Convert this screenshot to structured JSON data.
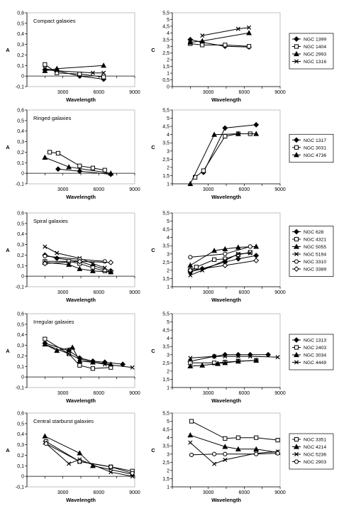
{
  "chart_data": [
    {
      "type": "line",
      "title": "Compact galaxies",
      "xlabel": "Wavelength",
      "ylabel": "A",
      "xlim": [
        0,
        9000
      ],
      "ylim": [
        -0.1,
        0.6
      ],
      "x_ticks": [
        "0",
        "1500",
        "3000",
        "4500",
        "6000",
        "7500",
        "9000"
      ],
      "y_ticks": [
        "-0,1",
        "0",
        "0,1",
        "0,2",
        "0,3",
        "0,4",
        "0,5",
        "0,6"
      ],
      "series": [
        {
          "name": "NGC 1399",
          "marker": "diamond",
          "x": [
            1500,
            2500,
            4400,
            6400
          ],
          "y": [
            0.06,
            0.05,
            0.0,
            -0.03
          ]
        },
        {
          "name": "NGC 1404",
          "marker": "square",
          "x": [
            1500,
            2500,
            4400,
            6400
          ],
          "y": [
            0.11,
            0.03,
            0.02,
            -0.01
          ]
        },
        {
          "name": "NGC 2993",
          "marker": "triangle",
          "x": [
            1500,
            2500,
            6400
          ],
          "y": [
            0.05,
            0.07,
            0.1
          ]
        },
        {
          "name": "NGC 1316",
          "marker": "cross",
          "x": [
            1500,
            2500,
            5500,
            6400
          ],
          "y": [
            0.07,
            0.05,
            0.03,
            0.03
          ]
        }
      ]
    },
    {
      "type": "line",
      "title": "",
      "xlabel": "Wavelength",
      "ylabel": "C",
      "xlim": [
        0,
        9000
      ],
      "ylim": [
        0,
        5.5
      ],
      "x_ticks": [
        "0",
        "1500",
        "3000",
        "4500",
        "6000",
        "7500",
        "9000"
      ],
      "y_ticks": [
        "0",
        "0,5",
        "1",
        "1,5",
        "2",
        "2,5",
        "3",
        "3,5",
        "4",
        "4,5",
        "5",
        "5,5"
      ],
      "legend": [
        "NGC 1399",
        "NGC 1404",
        "NGC 2993",
        "NGC 1316"
      ],
      "series": [
        {
          "name": "NGC 1399",
          "marker": "diamond",
          "x": [
            1500,
            2500,
            4400,
            6400
          ],
          "y": [
            3.5,
            3.3,
            3.0,
            2.95
          ]
        },
        {
          "name": "NGC 1404",
          "marker": "square",
          "x": [
            1500,
            2500,
            4400,
            6400
          ],
          "y": [
            3.2,
            3.1,
            3.1,
            3.0
          ]
        },
        {
          "name": "NGC 2993",
          "marker": "triangle",
          "x": [
            1500,
            2500,
            6400
          ],
          "y": [
            3.3,
            3.4,
            4.0
          ]
        },
        {
          "name": "NGC 1316",
          "marker": "cross",
          "x": [
            2500,
            5500,
            6400
          ],
          "y": [
            3.8,
            4.3,
            4.4
          ]
        }
      ]
    },
    {
      "type": "line",
      "title": "Ringed galaxies",
      "xlabel": "Wavelength",
      "ylabel": "A",
      "xlim": [
        0,
        9000
      ],
      "ylim": [
        -0.1,
        0.6
      ],
      "x_ticks": [
        "0",
        "1500",
        "3000",
        "4500",
        "6000",
        "7500",
        "9000"
      ],
      "y_ticks": [
        "-0,1",
        "0",
        "0,1",
        "0,2",
        "0,3",
        "0,4",
        "0,5",
        "0,6"
      ],
      "series": [
        {
          "name": "NGC 1317",
          "marker": "diamond",
          "x": [
            2600,
            4400,
            7000
          ],
          "y": [
            0.04,
            0.02,
            -0.01
          ]
        },
        {
          "name": "NGC 3031",
          "marker": "square",
          "x": [
            1900,
            2600,
            4400,
            5500,
            6500
          ],
          "y": [
            0.2,
            0.19,
            0.07,
            0.05,
            0.03
          ]
        },
        {
          "name": "NGC 4736",
          "marker": "triangle",
          "x": [
            1500,
            3500,
            7000
          ],
          "y": [
            0.15,
            0.06,
            0.0
          ]
        }
      ]
    },
    {
      "type": "line",
      "title": "",
      "xlabel": "Wavelength",
      "ylabel": "C",
      "xlim": [
        0,
        9000
      ],
      "ylim": [
        1,
        5.5
      ],
      "x_ticks": [
        "0",
        "1500",
        "3000",
        "4500",
        "6000",
        "7500",
        "9000"
      ],
      "y_ticks": [
        "1",
        "1,5",
        "2",
        "2,5",
        "3",
        "3,5",
        "4",
        "4,5",
        "5",
        "5,5"
      ],
      "legend": [
        "NGC 1317",
        "NGC 3031",
        "NGC 4736"
      ],
      "series": [
        {
          "name": "NGC 1317",
          "marker": "diamond",
          "x": [
            2600,
            4400,
            7000
          ],
          "y": [
            1.7,
            4.4,
            4.6
          ]
        },
        {
          "name": "NGC 3031",
          "marker": "square",
          "x": [
            1900,
            2600,
            4400,
            5500,
            6500
          ],
          "y": [
            1.4,
            1.8,
            3.9,
            4.05,
            4.05
          ]
        },
        {
          "name": "NGC 4736",
          "marker": "triangle",
          "x": [
            1500,
            3500,
            5500,
            7000
          ],
          "y": [
            1.0,
            4.0,
            4.05,
            4.05
          ]
        }
      ]
    },
    {
      "type": "line",
      "title": "Spiral galaxies",
      "xlabel": "Wavelength",
      "ylabel": "A",
      "xlim": [
        0,
        9000
      ],
      "ylim": [
        -0.1,
        0.6
      ],
      "x_ticks": [
        "0",
        "1500",
        "3000",
        "4500",
        "6000",
        "7500",
        "9000"
      ],
      "y_ticks": [
        "-0,1",
        "0",
        "0,1",
        "0,2",
        "0,3",
        "0,4",
        "0,5",
        "0,6"
      ],
      "series": [
        {
          "name": "NGC 628",
          "marker": "diamond",
          "x": [
            1500,
            2500,
            4400,
            5500,
            7000
          ],
          "y": [
            0.2,
            0.17,
            0.14,
            0.1,
            0.05
          ]
        },
        {
          "name": "NGC 4321",
          "marker": "square",
          "x": [
            1500,
            3500,
            4400,
            5500,
            6500,
            7000
          ],
          "y": [
            0.14,
            0.14,
            0.12,
            0.08,
            0.05,
            0.04
          ]
        },
        {
          "name": "NGC 5055",
          "marker": "triangle",
          "x": [
            1500,
            3500,
            4400,
            5500,
            7000
          ],
          "y": [
            0.13,
            0.11,
            0.07,
            0.05,
            0.04
          ]
        },
        {
          "name": "NGC 5194",
          "marker": "cross",
          "x": [
            1500,
            2500,
            4400,
            5500,
            6500
          ],
          "y": [
            0.28,
            0.22,
            0.17,
            0.12,
            0.08
          ]
        },
        {
          "name": "NGC 3310",
          "marker": "circle",
          "x": [
            1500,
            4400,
            6500
          ],
          "y": [
            0.19,
            0.16,
            0.14
          ]
        },
        {
          "name": "NGC 3389",
          "marker": "diamond-open",
          "x": [
            1500,
            4400,
            7000
          ],
          "y": [
            0.12,
            0.14,
            0.13
          ]
        }
      ]
    },
    {
      "type": "line",
      "title": "",
      "xlabel": "Wavelength",
      "ylabel": "C",
      "xlim": [
        0,
        9000
      ],
      "ylim": [
        1,
        5.5
      ],
      "x_ticks": [
        "0",
        "1500",
        "3000",
        "4500",
        "6000",
        "7500",
        "9000"
      ],
      "y_ticks": [
        "1",
        "1,5",
        "2",
        "2,5",
        "3",
        "3,5",
        "4",
        "4,5",
        "5",
        "5,5"
      ],
      "legend": [
        "NGC 628",
        "NGC 4321",
        "NGC 5055",
        "NGC 5194",
        "NGC 3310",
        "NGC 3389"
      ],
      "series": [
        {
          "name": "NGC 628",
          "marker": "diamond",
          "x": [
            1500,
            2500,
            4400,
            5500,
            7000
          ],
          "y": [
            1.9,
            2.1,
            2.5,
            2.7,
            2.9
          ]
        },
        {
          "name": "NGC 4321",
          "marker": "square",
          "x": [
            1500,
            2000,
            3500,
            4400,
            5500,
            6500
          ],
          "y": [
            2.0,
            2.2,
            2.65,
            2.7,
            2.95,
            3.1
          ]
        },
        {
          "name": "NGC 5055",
          "marker": "triangle",
          "x": [
            1500,
            3500,
            4400,
            5500,
            7000
          ],
          "y": [
            2.3,
            3.2,
            3.3,
            3.4,
            3.45
          ]
        },
        {
          "name": "NGC 5194",
          "marker": "cross",
          "x": [
            1500,
            2500,
            4400,
            5500,
            6500
          ],
          "y": [
            1.7,
            2.0,
            2.6,
            3.0,
            3.05
          ]
        },
        {
          "name": "NGC 3310",
          "marker": "circle",
          "x": [
            1500,
            4400,
            6500
          ],
          "y": [
            2.8,
            3.0,
            3.45
          ]
        },
        {
          "name": "NGC 3389",
          "marker": "diamond-open",
          "x": [
            1500,
            4400,
            7000
          ],
          "y": [
            2.0,
            2.3,
            2.6
          ]
        }
      ]
    },
    {
      "type": "line",
      "title": "Irregular galaxies",
      "xlabel": "Wavelength",
      "ylabel": "A",
      "xlim": [
        0,
        9000
      ],
      "ylim": [
        -0.1,
        0.6
      ],
      "x_ticks": [
        "0",
        "1500",
        "3000",
        "4500",
        "6000",
        "7500",
        "9000"
      ],
      "y_ticks": [
        "-0,1",
        "0",
        "0,1",
        "0,2",
        "0,3",
        "0,4",
        "0,5",
        "0,6"
      ],
      "series": [
        {
          "name": "NGC 1313",
          "marker": "diamond",
          "x": [
            1500,
            3500,
            4400,
            5500,
            6500,
            8000
          ],
          "y": [
            0.32,
            0.25,
            0.18,
            0.15,
            0.14,
            0.12
          ]
        },
        {
          "name": "NGC 2403",
          "marker": "square",
          "x": [
            1500,
            3500,
            4400,
            5500,
            7000
          ],
          "y": [
            0.36,
            0.22,
            0.11,
            0.08,
            0.09
          ]
        },
        {
          "name": "NGC 3034",
          "marker": "triangle",
          "x": [
            1500,
            2500,
            3800,
            4400,
            5500,
            7000
          ],
          "y": [
            0.31,
            0.25,
            0.28,
            0.15,
            0.14,
            0.12
          ]
        },
        {
          "name": "NGC 4449",
          "marker": "cross",
          "x": [
            1500,
            3500,
            4400,
            5500,
            6500,
            8800
          ],
          "y": [
            0.31,
            0.22,
            0.17,
            0.14,
            0.12,
            0.09
          ]
        }
      ]
    },
    {
      "type": "line",
      "title": "",
      "xlabel": "Wavelength",
      "ylabel": "C",
      "xlim": [
        0,
        9000
      ],
      "ylim": [
        1,
        5.5
      ],
      "x_ticks": [
        "0",
        "1500",
        "3000",
        "4500",
        "6000",
        "7500",
        "9000"
      ],
      "y_ticks": [
        "1",
        "1,5",
        "2",
        "2,5",
        "3",
        "3,5",
        "4",
        "4,5",
        "5",
        "5,5"
      ],
      "legend": [
        "NGC 1313",
        "NGC 2403",
        "NGC 3034",
        "NGC 4449"
      ],
      "series": [
        {
          "name": "NGC 1313",
          "marker": "diamond",
          "x": [
            1500,
            3500,
            4400,
            5500,
            6500,
            8000
          ],
          "y": [
            2.6,
            2.9,
            3.0,
            3.0,
            3.0,
            3.0
          ]
        },
        {
          "name": "NGC 2403",
          "marker": "square",
          "x": [
            1500,
            3500,
            4400,
            5500,
            7000
          ],
          "y": [
            2.5,
            2.5,
            2.55,
            2.6,
            2.65
          ]
        },
        {
          "name": "NGC 3034",
          "marker": "triangle",
          "x": [
            1500,
            2500,
            3800,
            4400,
            5500,
            7000
          ],
          "y": [
            2.3,
            2.35,
            2.45,
            2.5,
            2.6,
            2.65
          ]
        },
        {
          "name": "NGC 4449",
          "marker": "cross",
          "x": [
            1500,
            3500,
            4400,
            5500,
            6500,
            8800
          ],
          "y": [
            2.8,
            2.9,
            2.9,
            2.9,
            2.9,
            2.85
          ]
        }
      ]
    },
    {
      "type": "line",
      "title": "Central starburst galaxies",
      "xlabel": "Wavelength",
      "ylabel": "A",
      "xlim": [
        0,
        9000
      ],
      "ylim": [
        -0.1,
        0.6
      ],
      "x_ticks": [
        "0",
        "1500",
        "3000",
        "4500",
        "6000",
        "7500",
        "9000"
      ],
      "y_ticks": [
        "-0,1",
        "0",
        "0,1",
        "0,2",
        "0,3",
        "0,4",
        "0,5",
        "0,6"
      ],
      "series": [
        {
          "name": "NGC 3351",
          "marker": "square",
          "x": [
            1600,
            4400,
            7000,
            8800
          ],
          "y": [
            0.33,
            0.14,
            0.09,
            0.05
          ]
        },
        {
          "name": "NGC 4214",
          "marker": "triangle",
          "x": [
            1500,
            4400,
            5500,
            8800
          ],
          "y": [
            0.38,
            0.22,
            0.1,
            0.02
          ]
        },
        {
          "name": "NGC 5236",
          "marker": "cross",
          "x": [
            1500,
            3500,
            4400,
            7000,
            8800
          ],
          "y": [
            0.32,
            0.12,
            0.16,
            0.04,
            0.0
          ]
        },
        {
          "name": "NGC 2903",
          "marker": "circle",
          "x": [
            1600,
            4400,
            7000,
            8800
          ],
          "y": [
            0.31,
            0.14,
            0.09,
            0.03
          ]
        }
      ]
    },
    {
      "type": "line",
      "title": "",
      "xlabel": "Wavelength",
      "ylabel": "C",
      "xlim": [
        0,
        9000
      ],
      "ylim": [
        1,
        5.5
      ],
      "x_ticks": [
        "0",
        "1500",
        "3000",
        "4500",
        "6000",
        "7500",
        "9000"
      ],
      "y_ticks": [
        "1",
        "1,5",
        "2",
        "2,5",
        "3",
        "3,5",
        "4",
        "4,5",
        "5",
        "5,5"
      ],
      "legend": [
        "NGC 3351",
        "NGC 4214",
        "NGC 5236",
        "NGC 2903"
      ],
      "series": [
        {
          "name": "NGC 3351",
          "marker": "square",
          "x": [
            1600,
            4400,
            5500,
            7000,
            8800
          ],
          "y": [
            5.0,
            3.95,
            4.0,
            4.0,
            3.85
          ]
        },
        {
          "name": "NGC 4214",
          "marker": "triangle",
          "x": [
            1500,
            4400,
            5500,
            7000,
            8800
          ],
          "y": [
            4.15,
            3.45,
            3.3,
            3.3,
            3.1
          ]
        },
        {
          "name": "NGC 5236",
          "marker": "cross",
          "x": [
            1500,
            3500,
            4400,
            7000,
            8800
          ],
          "y": [
            3.7,
            2.4,
            2.65,
            3.05,
            3.15
          ]
        },
        {
          "name": "NGC 2903",
          "marker": "circle",
          "x": [
            1600,
            3500,
            4400,
            7000,
            8800
          ],
          "y": [
            2.95,
            3.0,
            3.0,
            3.0,
            3.05
          ]
        }
      ]
    }
  ]
}
